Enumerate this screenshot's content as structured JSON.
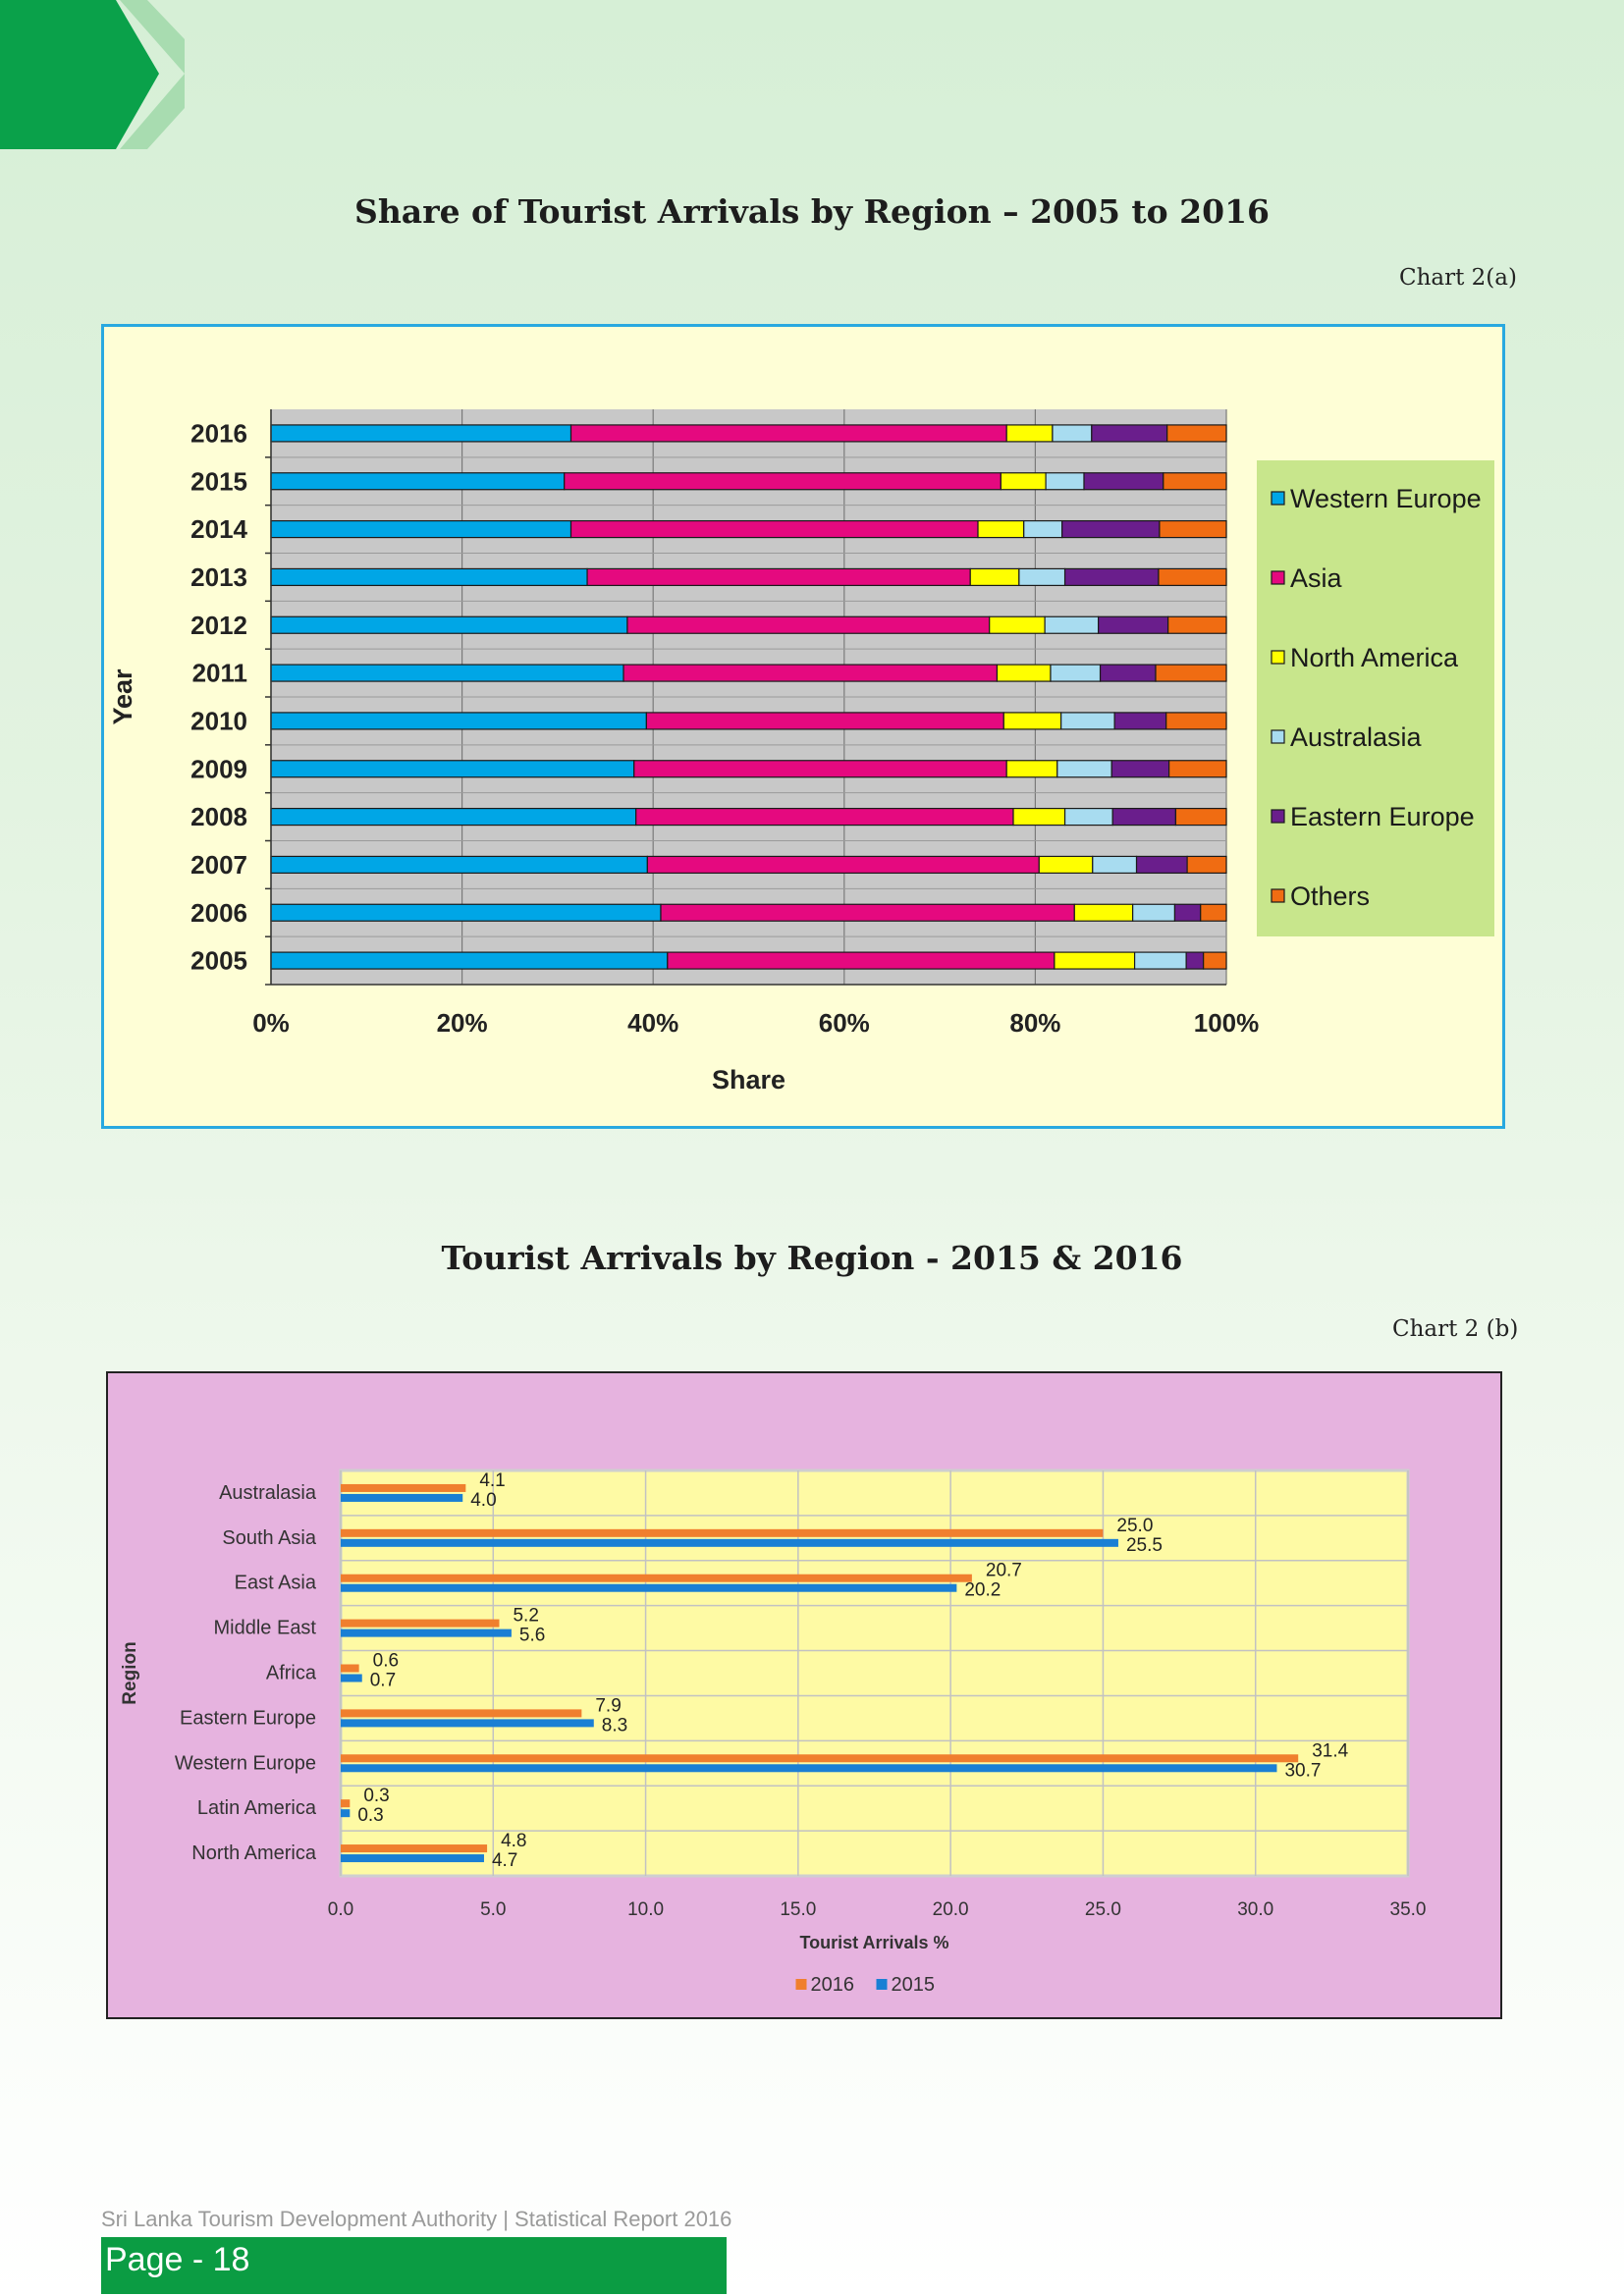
{
  "chart_a": {
    "title": "Share of Tourist Arrivals by Region – 2005 to 2016",
    "id_label": "Chart 2(a)",
    "type": "bar",
    "stacked": true,
    "orientation": "horizontal",
    "xlabel": "Share",
    "ylabel": "Year",
    "x_ticks": [
      "0%",
      "20%",
      "40%",
      "60%",
      "80%",
      "100%"
    ],
    "xlim": [
      0,
      100
    ],
    "grid": true,
    "legend_position": "right",
    "categories": [
      "2005",
      "2006",
      "2007",
      "2008",
      "2009",
      "2010",
      "2011",
      "2012",
      "2013",
      "2014",
      "2015",
      "2016"
    ],
    "series": [
      {
        "name": "Western Europe",
        "color": "#00a6e6",
        "values": [
          41.5,
          40.8,
          39.4,
          38.2,
          38.0,
          39.3,
          36.9,
          37.3,
          33.1,
          31.4,
          30.7,
          31.4
        ]
      },
      {
        "name": "Asia",
        "color": "#e5097f",
        "values": [
          40.5,
          43.3,
          41.0,
          39.5,
          39.0,
          37.4,
          39.1,
          37.9,
          40.1,
          42.6,
          45.7,
          45.6
        ]
      },
      {
        "name": "North America",
        "color": "#ffff00",
        "values": [
          8.4,
          6.1,
          5.6,
          5.4,
          5.3,
          6.0,
          5.6,
          5.8,
          5.1,
          4.8,
          4.7,
          4.8
        ]
      },
      {
        "name": "Australasia",
        "color": "#a8dcf0",
        "values": [
          5.4,
          4.4,
          4.6,
          5.0,
          5.7,
          5.6,
          5.2,
          5.6,
          4.8,
          4.0,
          4.0,
          4.1
        ]
      },
      {
        "name": "Eastern Europe",
        "color": "#6a1e8c",
        "values": [
          1.8,
          2.7,
          5.3,
          6.6,
          6.0,
          5.4,
          5.8,
          7.3,
          9.8,
          10.2,
          8.3,
          7.9
        ]
      },
      {
        "name": "Others",
        "color": "#f06c12",
        "values": [
          2.4,
          2.7,
          4.1,
          5.3,
          6.0,
          6.3,
          7.4,
          6.1,
          7.1,
          7.0,
          6.6,
          6.2
        ]
      }
    ],
    "colors": {
      "plot_bg": "#c8c8c8",
      "panel_bg": "#fefed6",
      "panel_border": "#29a9e0",
      "legend_bg": "#c8e68c"
    }
  },
  "chart_b": {
    "title": "Tourist Arrivals by Region - 2015 & 2016",
    "id_label": "Chart 2 (b)",
    "type": "bar",
    "orientation": "horizontal",
    "xlabel": "Tourist Arrivals %",
    "ylabel": "Region",
    "x_ticks": [
      "0.0",
      "5.0",
      "10.0",
      "15.0",
      "20.0",
      "25.0",
      "30.0",
      "35.0"
    ],
    "xlim": [
      0,
      35
    ],
    "grid": true,
    "legend_position": "bottom",
    "categories": [
      "Australasia",
      "South Asia",
      "East Asia",
      "Middle East",
      "Africa",
      "Eastern Europe",
      "Western Europe",
      "Latin America",
      "North America"
    ],
    "series": [
      {
        "name": "2016",
        "color": "#f07f2e",
        "values": [
          4.1,
          25.0,
          20.7,
          5.2,
          0.6,
          7.9,
          31.4,
          0.3,
          4.8
        ],
        "labels": [
          "4.1",
          "25.0",
          "20.7",
          "5.2",
          "0.6",
          "7.9",
          "31.4",
          "0.3",
          "4.8"
        ]
      },
      {
        "name": "2015",
        "color": "#1a7fd4",
        "values": [
          4.0,
          25.5,
          20.2,
          5.6,
          0.7,
          8.3,
          30.7,
          0.3,
          4.7
        ],
        "labels": [
          "4.0",
          "25.5",
          "20.2",
          "5.6",
          "0.7",
          "8.3",
          "30.7",
          "0.3",
          "4.7"
        ]
      }
    ],
    "colors": {
      "plot_bg": "#fefaa4",
      "panel_bg": "#e6b3df"
    }
  },
  "footer": {
    "org": "Sri Lanka Tourism Development Authority  |  Statistical Report 2016",
    "page": "Page - 18"
  }
}
